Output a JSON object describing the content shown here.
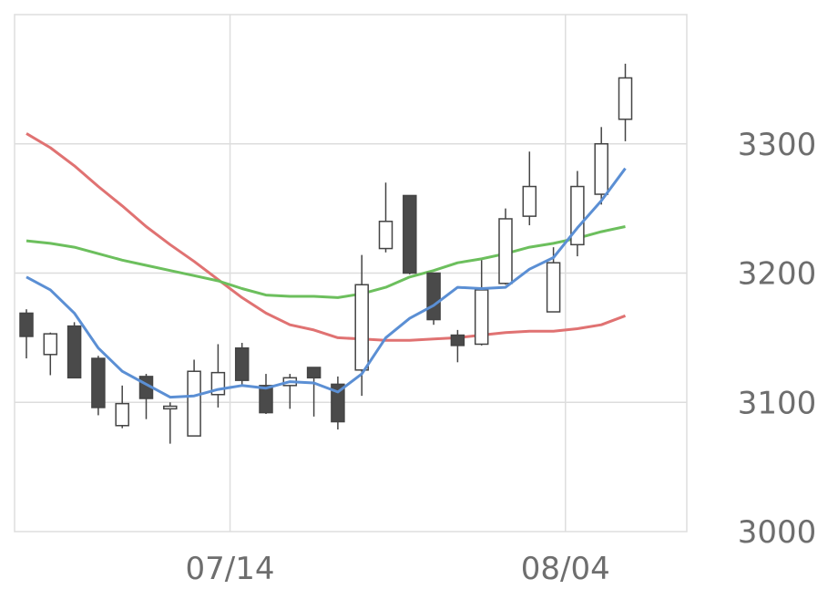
{
  "chart_data": {
    "type": "candlestick",
    "title": "",
    "xlabel": "",
    "ylabel": "",
    "ylim": [
      3000,
      3400
    ],
    "grid": true,
    "yticks": [
      3000,
      3100,
      3200,
      3300
    ],
    "ytick_labels": [
      "3000",
      "3100",
      "3200",
      "3300"
    ],
    "xticks": [
      {
        "index": 8.5,
        "label": "07/14"
      },
      {
        "index": 22.5,
        "label": "08/04"
      }
    ],
    "colors": {
      "up_body": "#ffffff",
      "down_body": "#4a4a4a",
      "wick": "#444444",
      "ma_short": "#5b8fd4",
      "ma_mid": "#6cbf5d",
      "ma_long": "#e07272",
      "grid": "#dddddd",
      "frame": "#dddddd",
      "tick_text": "#6e6e6e"
    },
    "candles": [
      {
        "o": 3169,
        "h": 3172,
        "l": 3134,
        "c": 3151
      },
      {
        "o": 3137,
        "h": 3154,
        "l": 3121,
        "c": 3153
      },
      {
        "o": 3159,
        "h": 3162,
        "l": 3121,
        "c": 3119
      },
      {
        "o": 3134,
        "h": 3136,
        "l": 3090,
        "c": 3096
      },
      {
        "o": 3082,
        "h": 3113,
        "l": 3080,
        "c": 3099
      },
      {
        "o": 3120,
        "h": 3122,
        "l": 3087,
        "c": 3103
      },
      {
        "o": 3095,
        "h": 3100,
        "l": 3068,
        "c": 3097
      },
      {
        "o": 3074,
        "h": 3133,
        "l": 3074,
        "c": 3124
      },
      {
        "o": 3106,
        "h": 3145,
        "l": 3096,
        "c": 3123
      },
      {
        "o": 3142,
        "h": 3146,
        "l": 3113,
        "c": 3117
      },
      {
        "o": 3113,
        "h": 3122,
        "l": 3091,
        "c": 3092
      },
      {
        "o": 3113,
        "h": 3122,
        "l": 3095,
        "c": 3119
      },
      {
        "o": 3127,
        "h": 3127,
        "l": 3089,
        "c": 3119
      },
      {
        "o": 3114,
        "h": 3120,
        "l": 3079,
        "c": 3085
      },
      {
        "o": 3125,
        "h": 3214,
        "l": 3105,
        "c": 3191
      },
      {
        "o": 3219,
        "h": 3270,
        "l": 3216,
        "c": 3240
      },
      {
        "o": 3260,
        "h": 3260,
        "l": 3199,
        "c": 3200
      },
      {
        "o": 3200,
        "h": 3200,
        "l": 3160,
        "c": 3164
      },
      {
        "o": 3152,
        "h": 3156,
        "l": 3131,
        "c": 3144
      },
      {
        "o": 3145,
        "h": 3210,
        "l": 3144,
        "c": 3187
      },
      {
        "o": 3192,
        "h": 3250,
        "l": 3191,
        "c": 3242
      },
      {
        "o": 3244,
        "h": 3294,
        "l": 3237,
        "c": 3267
      },
      {
        "o": 3170,
        "h": 3220,
        "l": 3170,
        "c": 3208
      },
      {
        "o": 3222,
        "h": 3279,
        "l": 3213,
        "c": 3267
      },
      {
        "o": 3261,
        "h": 3313,
        "l": 3253,
        "c": 3300
      },
      {
        "o": 3319,
        "h": 3362,
        "l": 3302,
        "c": 3351
      }
    ],
    "series": [
      {
        "key": "ma_short",
        "values": [
          3197,
          3187,
          3169,
          3142,
          3124,
          3114,
          3104,
          3105,
          3110,
          3113,
          3111,
          3116,
          3115,
          3108,
          3122,
          3150,
          3165,
          3175,
          3189,
          3188,
          3189,
          3203,
          3212,
          3235,
          3256,
          3281
        ]
      },
      {
        "key": "ma_mid",
        "values": [
          3225,
          3223,
          3220,
          3215,
          3210,
          3206,
          3202,
          3198,
          3194,
          3188,
          3183,
          3182,
          3182,
          3181,
          3184,
          3189,
          3197,
          3202,
          3208,
          3211,
          3215,
          3220,
          3223,
          3227,
          3232,
          3236
        ]
      },
      {
        "key": "ma_long",
        "values": [
          3308,
          3297,
          3283,
          3267,
          3252,
          3236,
          3222,
          3209,
          3195,
          3181,
          3169,
          3160,
          3156,
          3150,
          3149,
          3148,
          3148,
          3149,
          3150,
          3152,
          3154,
          3155,
          3155,
          3157,
          3160,
          3167
        ]
      }
    ]
  }
}
